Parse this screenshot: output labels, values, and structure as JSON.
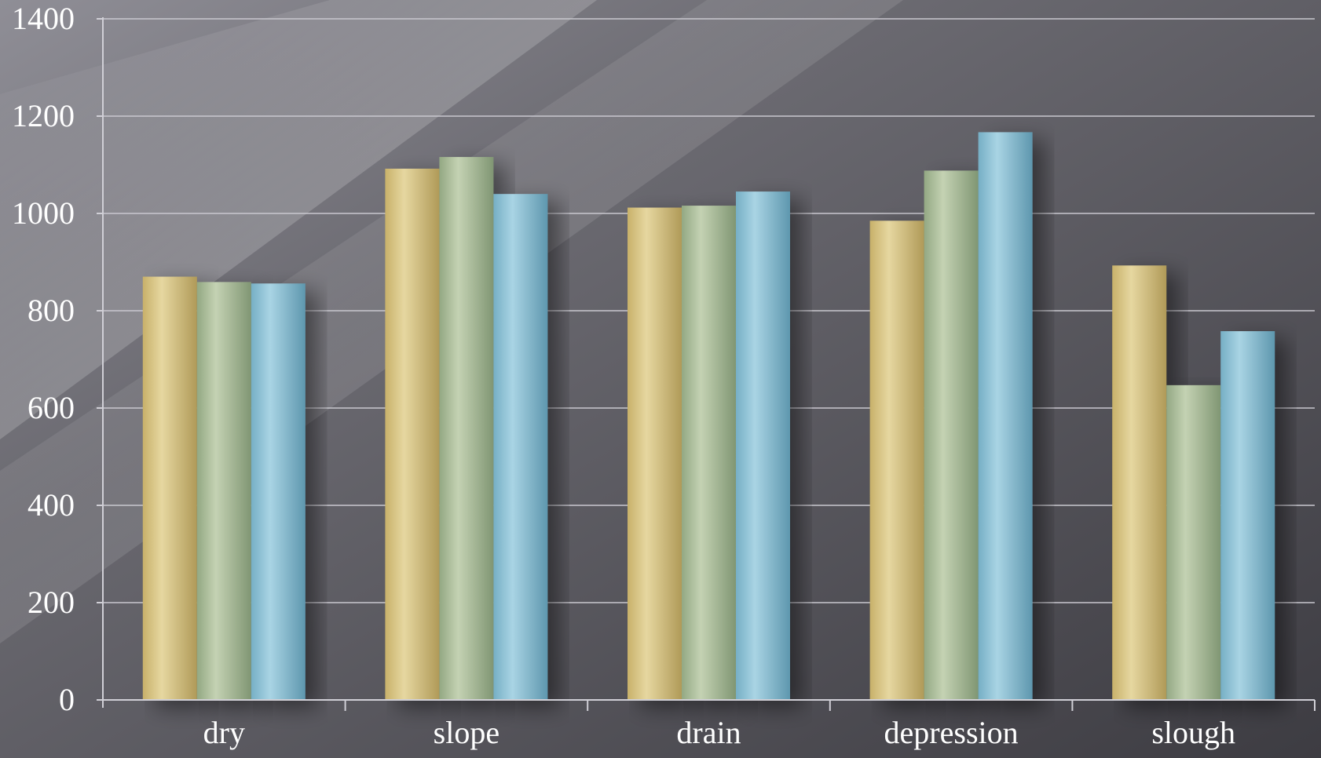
{
  "chart_data": {
    "type": "bar",
    "categories": [
      "dry",
      "slope",
      "drain",
      "depression",
      "slough"
    ],
    "series": [
      {
        "values": [
          870,
          1092,
          1012,
          985,
          893
        ]
      },
      {
        "values": [
          859,
          1116,
          1016,
          1088,
          647
        ]
      },
      {
        "values": [
          856,
          1040,
          1045,
          1167,
          758
        ]
      }
    ],
    "series_colors": [
      "#d9c68a",
      "#a9bb96",
      "#8ec3d8"
    ],
    "ylim": [
      0,
      1400
    ],
    "yticks": [
      0,
      200,
      400,
      600,
      800,
      1000,
      1200,
      1400
    ],
    "grid": true,
    "title": "",
    "xlabel": "",
    "ylabel": ""
  }
}
